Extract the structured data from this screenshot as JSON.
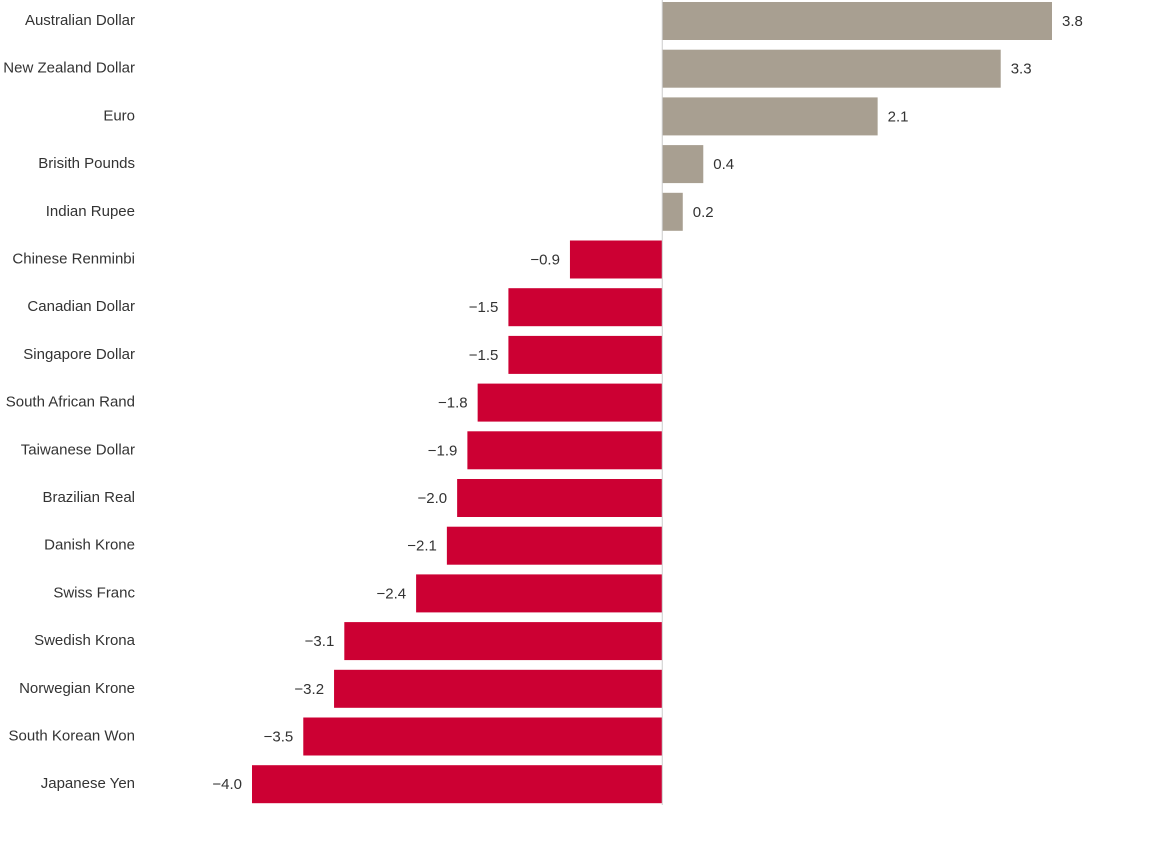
{
  "chart_data": {
    "type": "bar",
    "orientation": "horizontal",
    "categories": [
      "Australian Dollar",
      "New Zealand Dollar",
      "Euro",
      "Brisith Pounds",
      "Indian Rupee",
      "Chinese Renminbi",
      "Canadian Dollar",
      "Singapore Dollar",
      "South African Rand",
      "Taiwanese Dollar",
      "Brazilian Real",
      "Danish Krone",
      "Swiss Franc",
      "Swedish Krona",
      "Norwegian Krone",
      "South Korean Won",
      "Japanese Yen"
    ],
    "values": [
      3.8,
      3.3,
      2.1,
      0.4,
      0.2,
      -0.9,
      -1.5,
      -1.5,
      -1.8,
      -1.9,
      -2.0,
      -2.1,
      -2.4,
      -3.1,
      -3.2,
      -3.5,
      -4.0
    ],
    "value_labels": [
      "3.8",
      "3.3",
      "2.1",
      "0.4",
      "0.2",
      "−0.9",
      "−1.5",
      "−1.5",
      "−1.8",
      "−1.9",
      "−2.0",
      "−2.1",
      "−2.4",
      "−3.1",
      "−3.2",
      "−3.5",
      "−4.0"
    ],
    "positive_color": "#a89f91",
    "negative_color": "#cc0033"
  }
}
